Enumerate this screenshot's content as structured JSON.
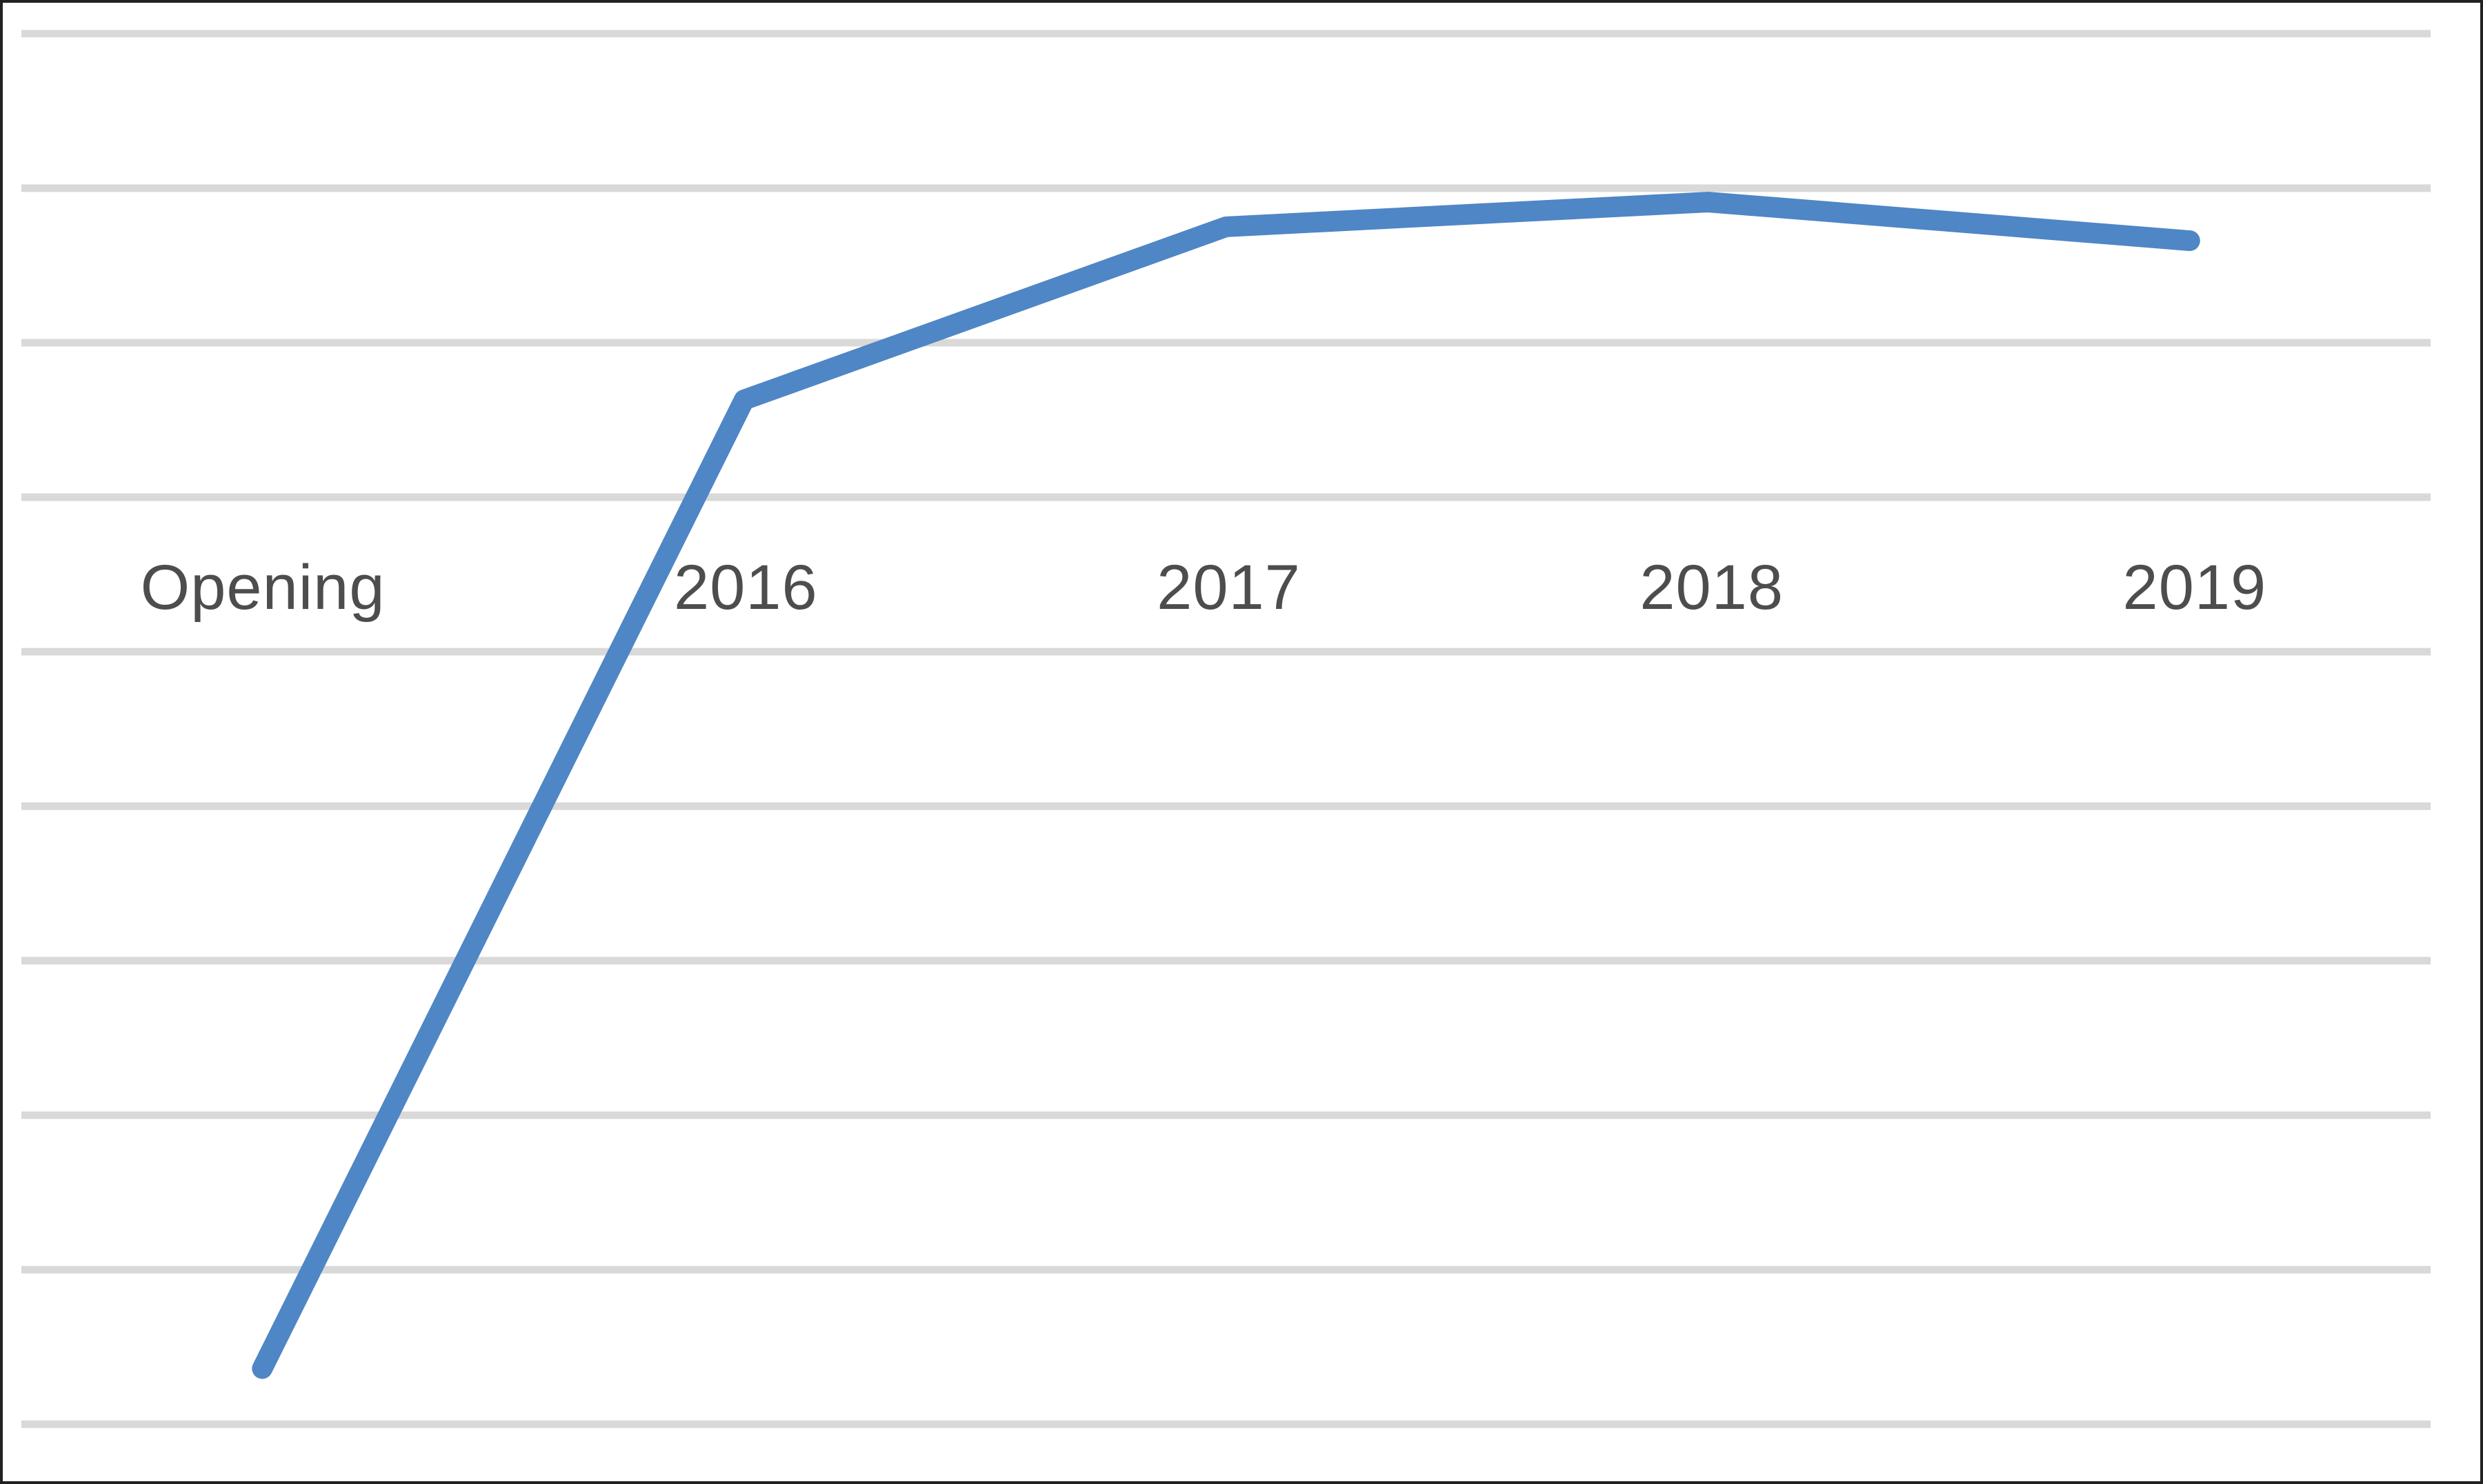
{
  "chart_data": {
    "type": "line",
    "title": "",
    "xlabel": "",
    "ylabel": "",
    "categories": [
      "Opening",
      "2016",
      "2017",
      "2018",
      "2019"
    ],
    "values": [
      0.36,
      6.63,
      7.75,
      7.91,
      7.66
    ],
    "ylim": [
      0,
      9
    ],
    "y_axis": {
      "tick_labels_visible": false,
      "note": "no numeric tick labels are rendered; values are estimated in gridline units where the bottom gridline = 0 and the top gridline = 9"
    },
    "gridlines": {
      "horizontal_count": 10,
      "vertical": false
    },
    "legend_position": "none",
    "markers": false,
    "x_label_row": "labels drawn inside plot area at the category-axis row",
    "colors": {
      "series_line": "#4f86c5",
      "gridline": "#d9d9d9",
      "axis_label_text": "#4d4d4d",
      "chart_border": "#212121",
      "background": "#ffffff"
    }
  }
}
